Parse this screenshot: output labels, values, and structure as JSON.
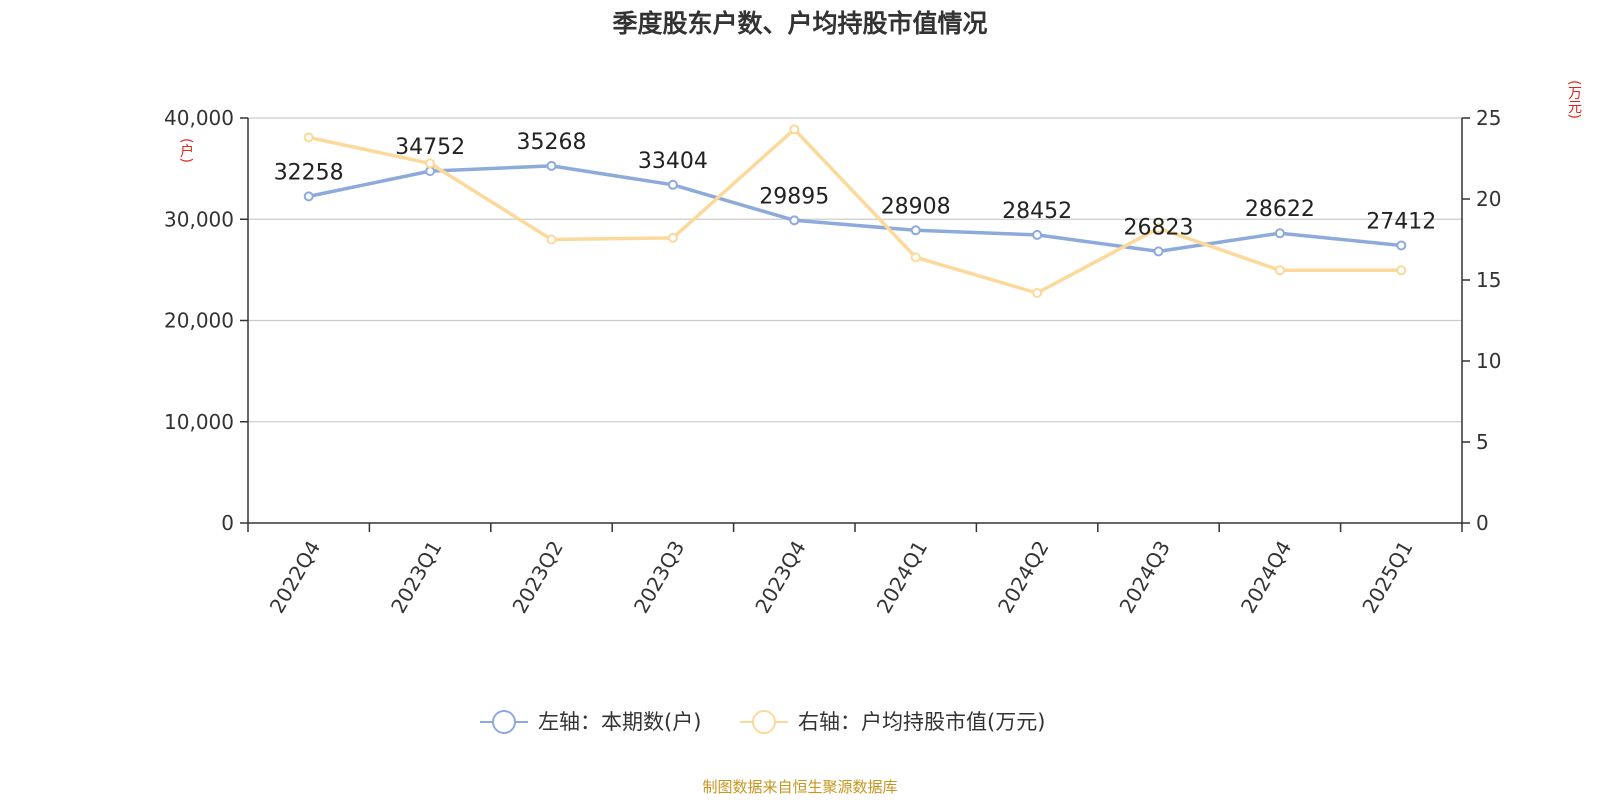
{
  "chart_data": {
    "type": "line",
    "title": "季度股东户数、户均持股市值情况",
    "categories": [
      "2022Q4",
      "2023Q1",
      "2023Q2",
      "2023Q3",
      "2023Q4",
      "2024Q1",
      "2024Q2",
      "2024Q3",
      "2024Q4",
      "2025Q1"
    ],
    "left_axis": {
      "label": "(户)",
      "range": [
        0,
        40000
      ],
      "ticks": [
        "0",
        "10,000",
        "20,000",
        "30,000",
        "40,000"
      ]
    },
    "right_axis": {
      "label": "(万元)",
      "range": [
        0,
        25
      ],
      "ticks": [
        "0",
        "5",
        "10",
        "15",
        "20",
        "25"
      ]
    },
    "series": [
      {
        "name": "左轴：本期数(户)",
        "axis": "left",
        "color": "#8eaadb",
        "values": [
          32258,
          34752,
          35268,
          33404,
          29895,
          28908,
          28452,
          26823,
          28622,
          27412
        ],
        "labels": [
          "32258",
          "34752",
          "35268",
          "33404",
          "29895",
          "28908",
          "28452",
          "26823",
          "28622",
          "27412"
        ]
      },
      {
        "name": "右轴：户均持股市值(万元)",
        "axis": "right",
        "color": "#fcd99a",
        "values": [
          23.8,
          22.2,
          17.5,
          17.6,
          24.3,
          16.4,
          14.2,
          18.2,
          15.6,
          15.6
        ]
      }
    ],
    "grid": true,
    "legend": "bottom-center",
    "source": "制图数据来自恒生聚源数据库"
  }
}
